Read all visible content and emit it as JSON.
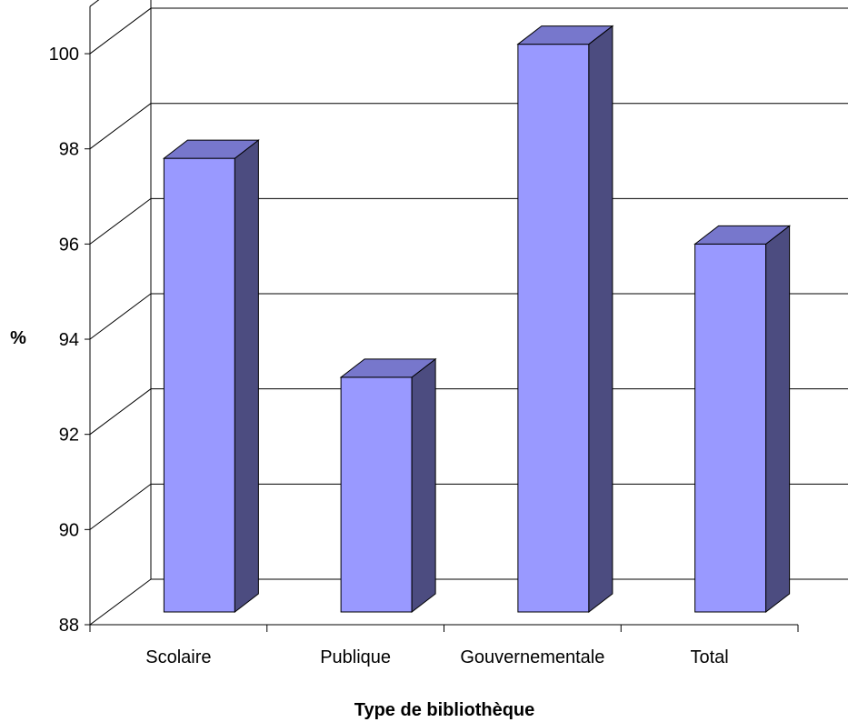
{
  "chart_data": {
    "type": "bar",
    "categories": [
      "Scolaire",
      "Publique",
      "Gouvernementale",
      "Total"
    ],
    "values": [
      97.8,
      93.2,
      100.2,
      96.0
    ],
    "xlabel": "Type de bibliothèque",
    "ylabel": "%",
    "ylim": [
      88,
      100
    ],
    "yticks": [
      "88",
      "90",
      "92",
      "94",
      "96",
      "98",
      "100"
    ],
    "grid": true,
    "three_d": true,
    "colors": {
      "bar_front": "#9999ff",
      "bar_side": "#4c4c80",
      "bar_top": "#7777cc",
      "grid": "#000000"
    }
  }
}
